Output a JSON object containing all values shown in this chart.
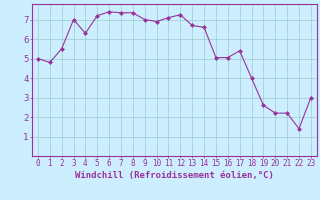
{
  "x": [
    0,
    1,
    2,
    3,
    4,
    5,
    6,
    7,
    8,
    9,
    10,
    11,
    12,
    13,
    14,
    15,
    16,
    17,
    18,
    19,
    20,
    21,
    22,
    23
  ],
  "y": [
    5.0,
    4.8,
    5.5,
    7.0,
    6.3,
    7.2,
    7.4,
    7.35,
    7.35,
    7.0,
    6.9,
    7.1,
    7.25,
    6.7,
    6.6,
    5.05,
    5.05,
    5.4,
    4.0,
    2.6,
    2.2,
    2.2,
    1.4,
    3.0
  ],
  "line_color": "#993399",
  "marker": "D",
  "marker_size": 2.0,
  "bg_color": "#cceeff",
  "grid_color": "#99cccc",
  "xlabel": "Windchill (Refroidissement éolien,°C)",
  "xlabel_color": "#993399",
  "tick_color": "#993399",
  "xlim": [
    -0.5,
    23.5
  ],
  "ylim": [
    0,
    7.8
  ],
  "yticks": [
    1,
    2,
    3,
    4,
    5,
    6,
    7
  ],
  "xticks": [
    0,
    1,
    2,
    3,
    4,
    5,
    6,
    7,
    8,
    9,
    10,
    11,
    12,
    13,
    14,
    15,
    16,
    17,
    18,
    19,
    20,
    21,
    22,
    23
  ],
  "spine_color": "#993399",
  "font_size_ticks": 5.5,
  "font_size_label": 6.5
}
